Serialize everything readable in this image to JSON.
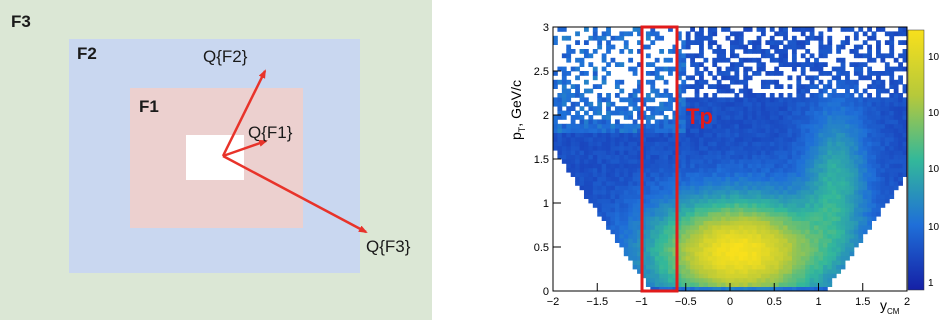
{
  "left": {
    "sectors": [
      {
        "id": "F3",
        "label": "F3",
        "color": "#dbe7d5"
      },
      {
        "id": "F2",
        "label": "F2",
        "color": "#c9d7f0"
      },
      {
        "id": "F1",
        "label": "F1",
        "color": "#ecd0cf"
      }
    ],
    "hole_color": "#ffffff",
    "vector_color": "#e8332a",
    "vectors": [
      {
        "label": "Q{F2}"
      },
      {
        "label": "Q{F1}"
      },
      {
        "label": "Q{F3}"
      }
    ]
  },
  "right": {
    "x_axis_label": "y",
    "x_axis_sub": "CM",
    "y_axis_label": "p",
    "y_axis_sub": "T",
    "y_axis_unit": ", GeV/c",
    "x_ticks": [
      "−2",
      "−1.5",
      "−1",
      "−0.5",
      "0",
      "0.5",
      "1",
      "1.5",
      "2"
    ],
    "y_ticks": [
      "0",
      "0.5",
      "1",
      "1.5",
      "2",
      "2.5",
      "3"
    ],
    "colorbar_ticks": [
      "1",
      "10",
      "10",
      "10",
      "10"
    ],
    "box_label": "Tp",
    "box_color": "#e11b1b"
  },
  "chart_data": {
    "type": "heatmap",
    "title": "",
    "xlabel": "y_CM",
    "ylabel": "p_T, GeV/c",
    "xlim": [
      -2,
      2
    ],
    "ylim": [
      0,
      3
    ],
    "color_scale": "log",
    "selection_box": {
      "label": "Tp",
      "x_range": [
        -1.0,
        -0.6
      ],
      "y_range": [
        0,
        3
      ]
    }
  }
}
